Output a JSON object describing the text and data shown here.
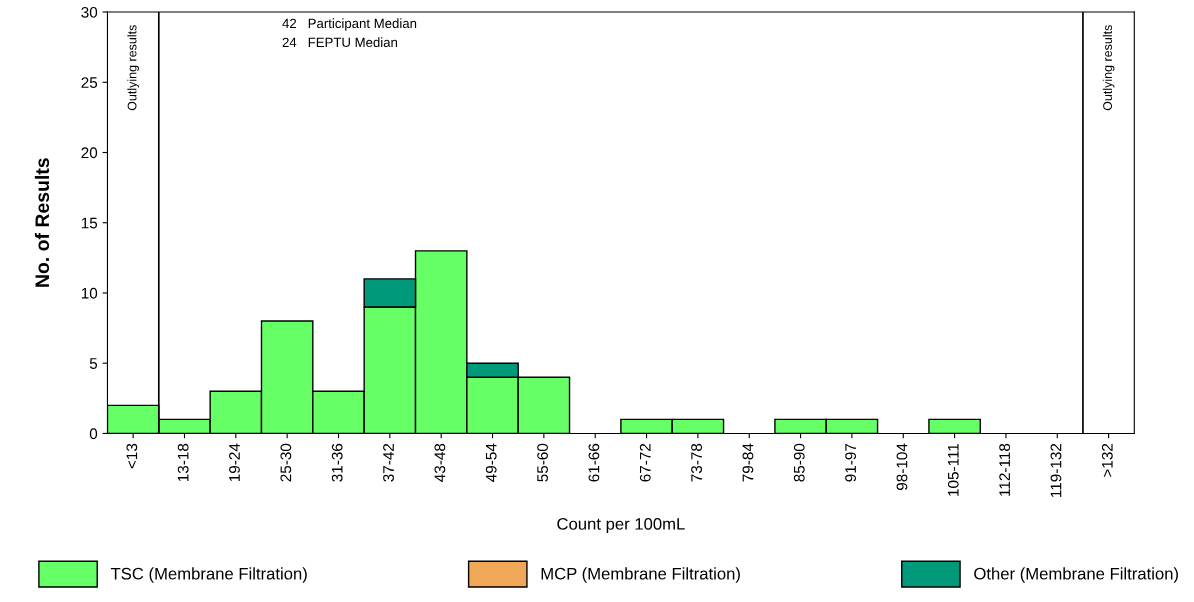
{
  "chart_data": {
    "type": "bar",
    "stacked": true,
    "xlabel": "Count per 100mL",
    "ylabel": "No. of Results",
    "categories": [
      "<13",
      "13-18",
      "19-24",
      "25-30",
      "31-36",
      "37-42",
      "43-48",
      "49-54",
      "55-60",
      "61-66",
      "67-72",
      "73-78",
      "79-84",
      "85-90",
      "91-97",
      "98-104",
      "105-111",
      "112-118",
      "119-132",
      ">132"
    ],
    "series": [
      {
        "name": "TSC (Membrane Filtration)",
        "color": "#66ff66",
        "values": [
          2,
          1,
          3,
          8,
          3,
          9,
          13,
          4,
          4,
          0,
          1,
          1,
          0,
          1,
          1,
          0,
          1,
          0,
          0,
          0
        ]
      },
      {
        "name": "MCP (Membrane Filtration)",
        "color": "#f0a858",
        "values": [
          0,
          0,
          0,
          0,
          0,
          0,
          0,
          0,
          0,
          0,
          0,
          0,
          0,
          0,
          0,
          0,
          0,
          0,
          0,
          0
        ]
      },
      {
        "name": "Other (Membrane Filtration)",
        "color": "#00997a",
        "values": [
          0,
          0,
          0,
          0,
          0,
          2,
          0,
          1,
          0,
          0,
          0,
          0,
          0,
          0,
          0,
          0,
          0,
          0,
          0,
          0
        ]
      }
    ],
    "ylim": [
      0,
      30
    ],
    "yticks": [
      0,
      5,
      10,
      15,
      20,
      25,
      30
    ],
    "annotations": [
      "Outlying results",
      "Outlying results",
      "42   Participant Median",
      "24   FEPTU Median"
    ],
    "legend": "bottom",
    "grid": false
  }
}
